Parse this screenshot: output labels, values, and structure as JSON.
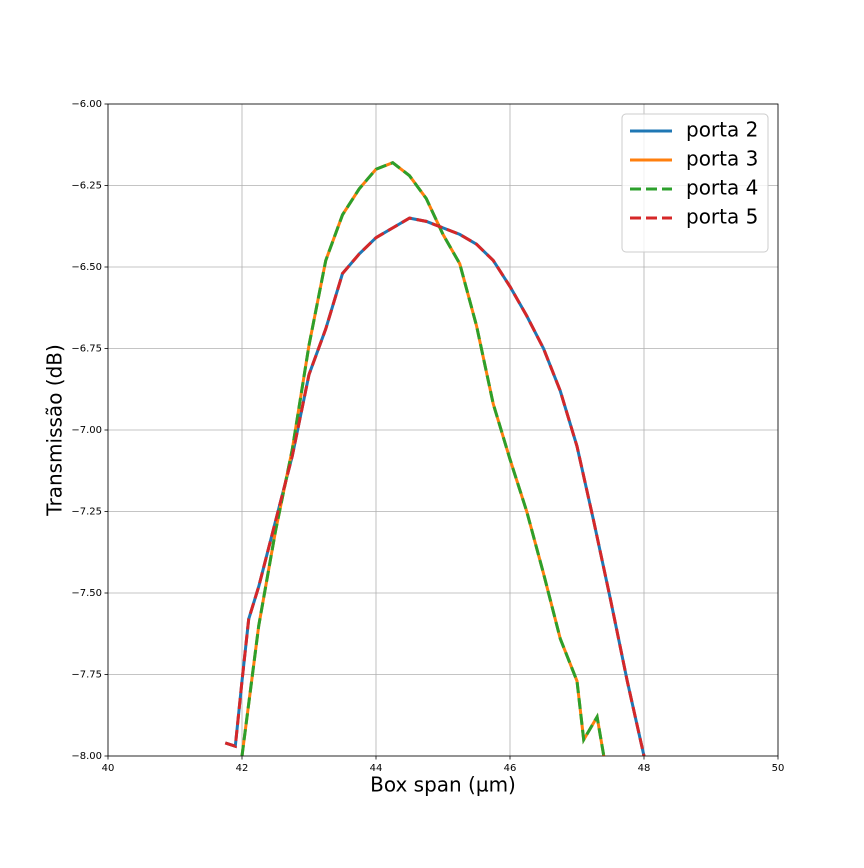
{
  "chart_data": {
    "type": "line",
    "xlabel": "Box span (µm)",
    "ylabel": "Transmissão (dB)",
    "xlim": [
      40,
      50
    ],
    "xticks": [
      40,
      42,
      44,
      46,
      48,
      50
    ],
    "ylim": [
      -8,
      -6
    ],
    "yticks": [
      {
        "value": -8,
        "label": "−8.00"
      },
      {
        "value": -7.75,
        "label": "−7.75"
      },
      {
        "value": -7.5,
        "label": "−7.50"
      },
      {
        "value": -7.25,
        "label": "−7.25"
      },
      {
        "value": -7,
        "label": "−7.00"
      },
      {
        "value": -6.75,
        "label": "−6.75"
      },
      {
        "value": -6.5,
        "label": "−6.50"
      },
      {
        "value": -6.25,
        "label": "−6.25"
      },
      {
        "value": -6,
        "label": "−6.00"
      }
    ],
    "grid": true,
    "legend": "upper right",
    "series": [
      {
        "name": "porta 2",
        "color": "#1f77b4",
        "dashed": false,
        "x": [
          41.75,
          41.9,
          42.0,
          42.1,
          42.25,
          42.5,
          42.75,
          43.0,
          43.25,
          43.5,
          43.75,
          44.0,
          44.25,
          44.5,
          44.75,
          45.0,
          45.25,
          45.5,
          45.75,
          46.0,
          46.25,
          46.5,
          46.75,
          47.0,
          47.25,
          47.5,
          47.75,
          48.0
        ],
        "values": [
          -7.96,
          -7.97,
          -7.77,
          -7.58,
          -7.48,
          -7.28,
          -7.08,
          -6.83,
          -6.69,
          -6.52,
          -6.46,
          -6.41,
          -6.38,
          -6.35,
          -6.36,
          -6.38,
          -6.4,
          -6.43,
          -6.48,
          -6.56,
          -6.65,
          -6.75,
          -6.88,
          -7.05,
          -7.28,
          -7.52,
          -7.77,
          -8.0
        ]
      },
      {
        "name": "porta 3",
        "color": "#ff7f0e",
        "dashed": false,
        "x": [
          42.0,
          42.25,
          42.5,
          42.75,
          43.0,
          43.25,
          43.5,
          43.75,
          44.0,
          44.25,
          44.5,
          44.75,
          45.0,
          45.25,
          45.5,
          45.75,
          46.0,
          46.25,
          46.5,
          46.75,
          47.0,
          47.1,
          47.3,
          47.4
        ],
        "values": [
          -8.0,
          -7.6,
          -7.31,
          -7.06,
          -6.74,
          -6.48,
          -6.34,
          -6.26,
          -6.2,
          -6.18,
          -6.22,
          -6.29,
          -6.4,
          -6.49,
          -6.68,
          -6.92,
          -7.09,
          -7.25,
          -7.44,
          -7.64,
          -7.77,
          -7.95,
          -7.88,
          -8.0
        ]
      },
      {
        "name": "porta 4",
        "color": "#2ca02c",
        "dashed": true,
        "x": [
          42.0,
          42.25,
          42.5,
          42.75,
          43.0,
          43.25,
          43.5,
          43.75,
          44.0,
          44.25,
          44.5,
          44.75,
          45.0,
          45.25,
          45.5,
          45.75,
          46.0,
          46.25,
          46.5,
          46.75,
          47.0,
          47.1,
          47.3,
          47.4
        ],
        "values": [
          -8.0,
          -7.6,
          -7.31,
          -7.06,
          -6.74,
          -6.48,
          -6.34,
          -6.26,
          -6.2,
          -6.18,
          -6.22,
          -6.29,
          -6.4,
          -6.49,
          -6.68,
          -6.92,
          -7.09,
          -7.25,
          -7.44,
          -7.64,
          -7.77,
          -7.95,
          -7.88,
          -8.0
        ]
      },
      {
        "name": "porta 5",
        "color": "#d62728",
        "dashed": true,
        "x": [
          41.75,
          41.9,
          42.0,
          42.1,
          42.25,
          42.5,
          42.75,
          43.0,
          43.25,
          43.5,
          43.75,
          44.0,
          44.25,
          44.5,
          44.75,
          45.0,
          45.25,
          45.5,
          45.75,
          46.0,
          46.25,
          46.5,
          46.75,
          47.0,
          47.25,
          47.5,
          47.75,
          48.0
        ],
        "values": [
          -7.96,
          -7.97,
          -7.77,
          -7.58,
          -7.48,
          -7.28,
          -7.08,
          -6.83,
          -6.69,
          -6.52,
          -6.46,
          -6.41,
          -6.38,
          -6.35,
          -6.36,
          -6.38,
          -6.4,
          -6.43,
          -6.48,
          -6.56,
          -6.65,
          -6.75,
          -6.88,
          -7.05,
          -7.28,
          -7.52,
          -7.77,
          -8.0
        ]
      }
    ]
  }
}
